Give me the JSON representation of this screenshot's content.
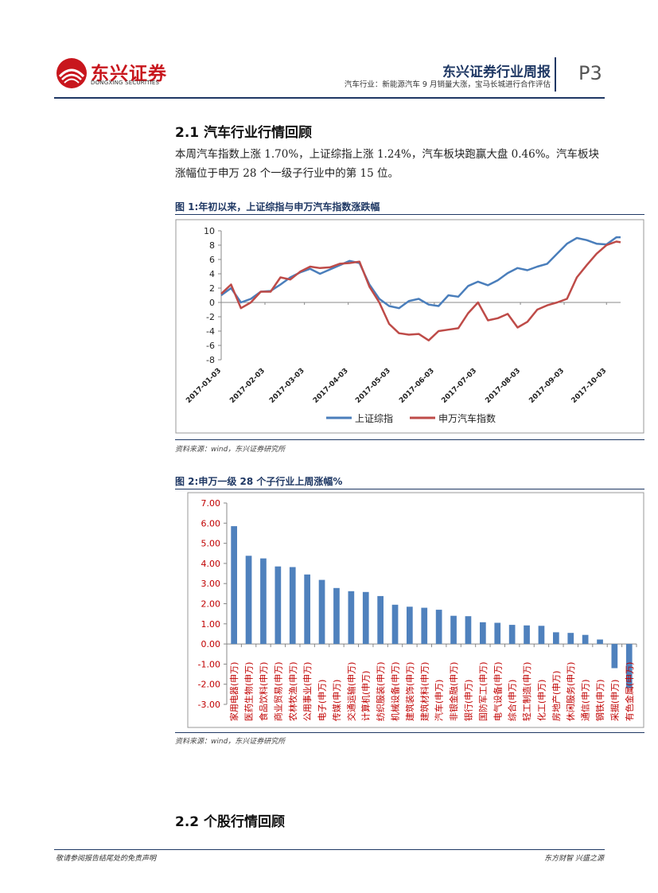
{
  "header": {
    "logo_cn": "东兴证券",
    "logo_en": "DONGXING SECURITIES",
    "report_title": "东兴证券行业周报",
    "report_subtitle": "汽车行业：新能源汽车 9 月销量大涨，宝马长城进行合作评估",
    "page_number": "P3"
  },
  "section_1": {
    "title": "2.1 汽车行业行情回顾",
    "paragraph": "本周汽车指数上涨 1.70%，上证综指上涨 1.24%，汽车板块跑赢大盘 0.46%。汽车板块涨幅位于申万 28 个一级子行业中的第 15 位。"
  },
  "figure_1": {
    "title": "图 1:年初以来，上证综指与申万汽车指数涨跌幅",
    "source": "资料来源：wind，东兴证券研究所"
  },
  "figure_2": {
    "title": "图 2:申万一级 28 个子行业上周涨幅%",
    "source": "资料来源：wind，东兴证券研究所"
  },
  "section_2": {
    "title": "2.2 个股行情回顾"
  },
  "footer": {
    "left": "敬请参阅报告结尾处的免责声明",
    "right": "东方财智 兴盛之源"
  },
  "colors": {
    "brand_red": "#c8161d",
    "navy": "#1f3864",
    "series_blue": "#4a7ebb",
    "series_red": "#be4b48",
    "bar_blue": "#4f81bd"
  },
  "chart_data": [
    {
      "type": "line",
      "ylim": [
        -8,
        10
      ],
      "yticks": [
        10,
        8,
        6,
        4,
        2,
        0,
        -2,
        -4,
        -6,
        -8
      ],
      "x_tick_labels": [
        "2017-01-03",
        "2017-02-03",
        "2017-03-03",
        "2017-04-03",
        "2017-05-03",
        "2017-06-03",
        "2017-07-03",
        "2017-08-03",
        "2017-09-03",
        "2017-10-03"
      ],
      "x": [
        "2017-01-03",
        "2017-01-10",
        "2017-01-17",
        "2017-01-24",
        "2017-01-31",
        "2017-02-07",
        "2017-02-14",
        "2017-02-21",
        "2017-02-28",
        "2017-03-07",
        "2017-03-14",
        "2017-03-21",
        "2017-03-28",
        "2017-04-04",
        "2017-04-11",
        "2017-04-18",
        "2017-04-25",
        "2017-05-02",
        "2017-05-09",
        "2017-05-16",
        "2017-05-23",
        "2017-05-30",
        "2017-06-06",
        "2017-06-13",
        "2017-06-20",
        "2017-06-27",
        "2017-07-04",
        "2017-07-11",
        "2017-07-18",
        "2017-07-25",
        "2017-08-01",
        "2017-08-08",
        "2017-08-15",
        "2017-08-22",
        "2017-08-29",
        "2017-09-05",
        "2017-09-12",
        "2017-09-19",
        "2017-09-26",
        "2017-10-03",
        "2017-10-10",
        "2017-10-13"
      ],
      "series": [
        {
          "name": "上证综指",
          "color": "#4a7ebb",
          "values": [
            1.0,
            2.0,
            0.0,
            0.5,
            1.5,
            1.6,
            2.5,
            3.5,
            4.2,
            4.7,
            4.0,
            4.6,
            5.2,
            5.8,
            5.5,
            2.5,
            0.5,
            -0.5,
            -0.8,
            0.2,
            0.5,
            -0.3,
            -0.5,
            1.0,
            0.8,
            2.3,
            2.9,
            2.4,
            3.1,
            4.1,
            4.8,
            4.5,
            5.0,
            5.4,
            6.8,
            8.2,
            9.0,
            8.7,
            8.2,
            8.1,
            9.1,
            9.1
          ]
        },
        {
          "name": "申万汽车指数",
          "color": "#be4b48",
          "values": [
            1.2,
            2.5,
            -0.8,
            0.0,
            1.5,
            1.5,
            3.5,
            3.2,
            4.3,
            5.0,
            4.8,
            4.9,
            5.4,
            5.5,
            5.7,
            2.2,
            0.0,
            -3.0,
            -4.3,
            -4.5,
            -4.4,
            -5.3,
            -4.0,
            -3.8,
            -3.6,
            -1.5,
            0.0,
            -2.5,
            -2.2,
            -1.6,
            -3.5,
            -2.7,
            -1.0,
            -0.4,
            0.0,
            0.5,
            3.5,
            5.2,
            6.8,
            8.0,
            8.5,
            8.4
          ]
        }
      ],
      "legend": "bottom"
    },
    {
      "type": "bar",
      "ylim": [
        -3,
        7
      ],
      "ytick_labels": [
        "7.00",
        "6.00",
        "5.00",
        "4.00",
        "3.00",
        "2.00",
        "1.00",
        "0.00",
        "-1.00",
        "-2.00",
        "-3.00"
      ],
      "categories": [
        "家用电器(申万)",
        "医药生物(申万)",
        "食品饮料(申万)",
        "商业贸易(申万)",
        "农林牧渔(申万)",
        "公用事业(申万)",
        "电子(申万)",
        "传媒(申万)",
        "交通运输(申万)",
        "计算机(申万)",
        "纺织服装(申万)",
        "机械设备(申万)",
        "建筑装饰(申万)",
        "建筑材料(申万)",
        "汽车(申万)",
        "非银金融(申万)",
        "银行(申万)",
        "国防军工(申万)",
        "电气设备(申万)",
        "综合(申万)",
        "轻工制造(申万)",
        "化工(申万)",
        "房地产(申万)",
        "休闲服务(申万)",
        "通信(申万)",
        "钢铁(申万)",
        "采掘(申万)",
        "有色金属(申万)"
      ],
      "values": [
        5.85,
        4.38,
        4.25,
        3.85,
        3.82,
        3.45,
        3.18,
        2.78,
        2.62,
        2.58,
        2.38,
        1.95,
        1.85,
        1.8,
        1.7,
        1.4,
        1.38,
        1.08,
        1.05,
        0.95,
        0.92,
        0.9,
        0.58,
        0.55,
        0.45,
        0.22,
        -1.2,
        -2.2
      ],
      "color": "#4f81bd"
    }
  ]
}
